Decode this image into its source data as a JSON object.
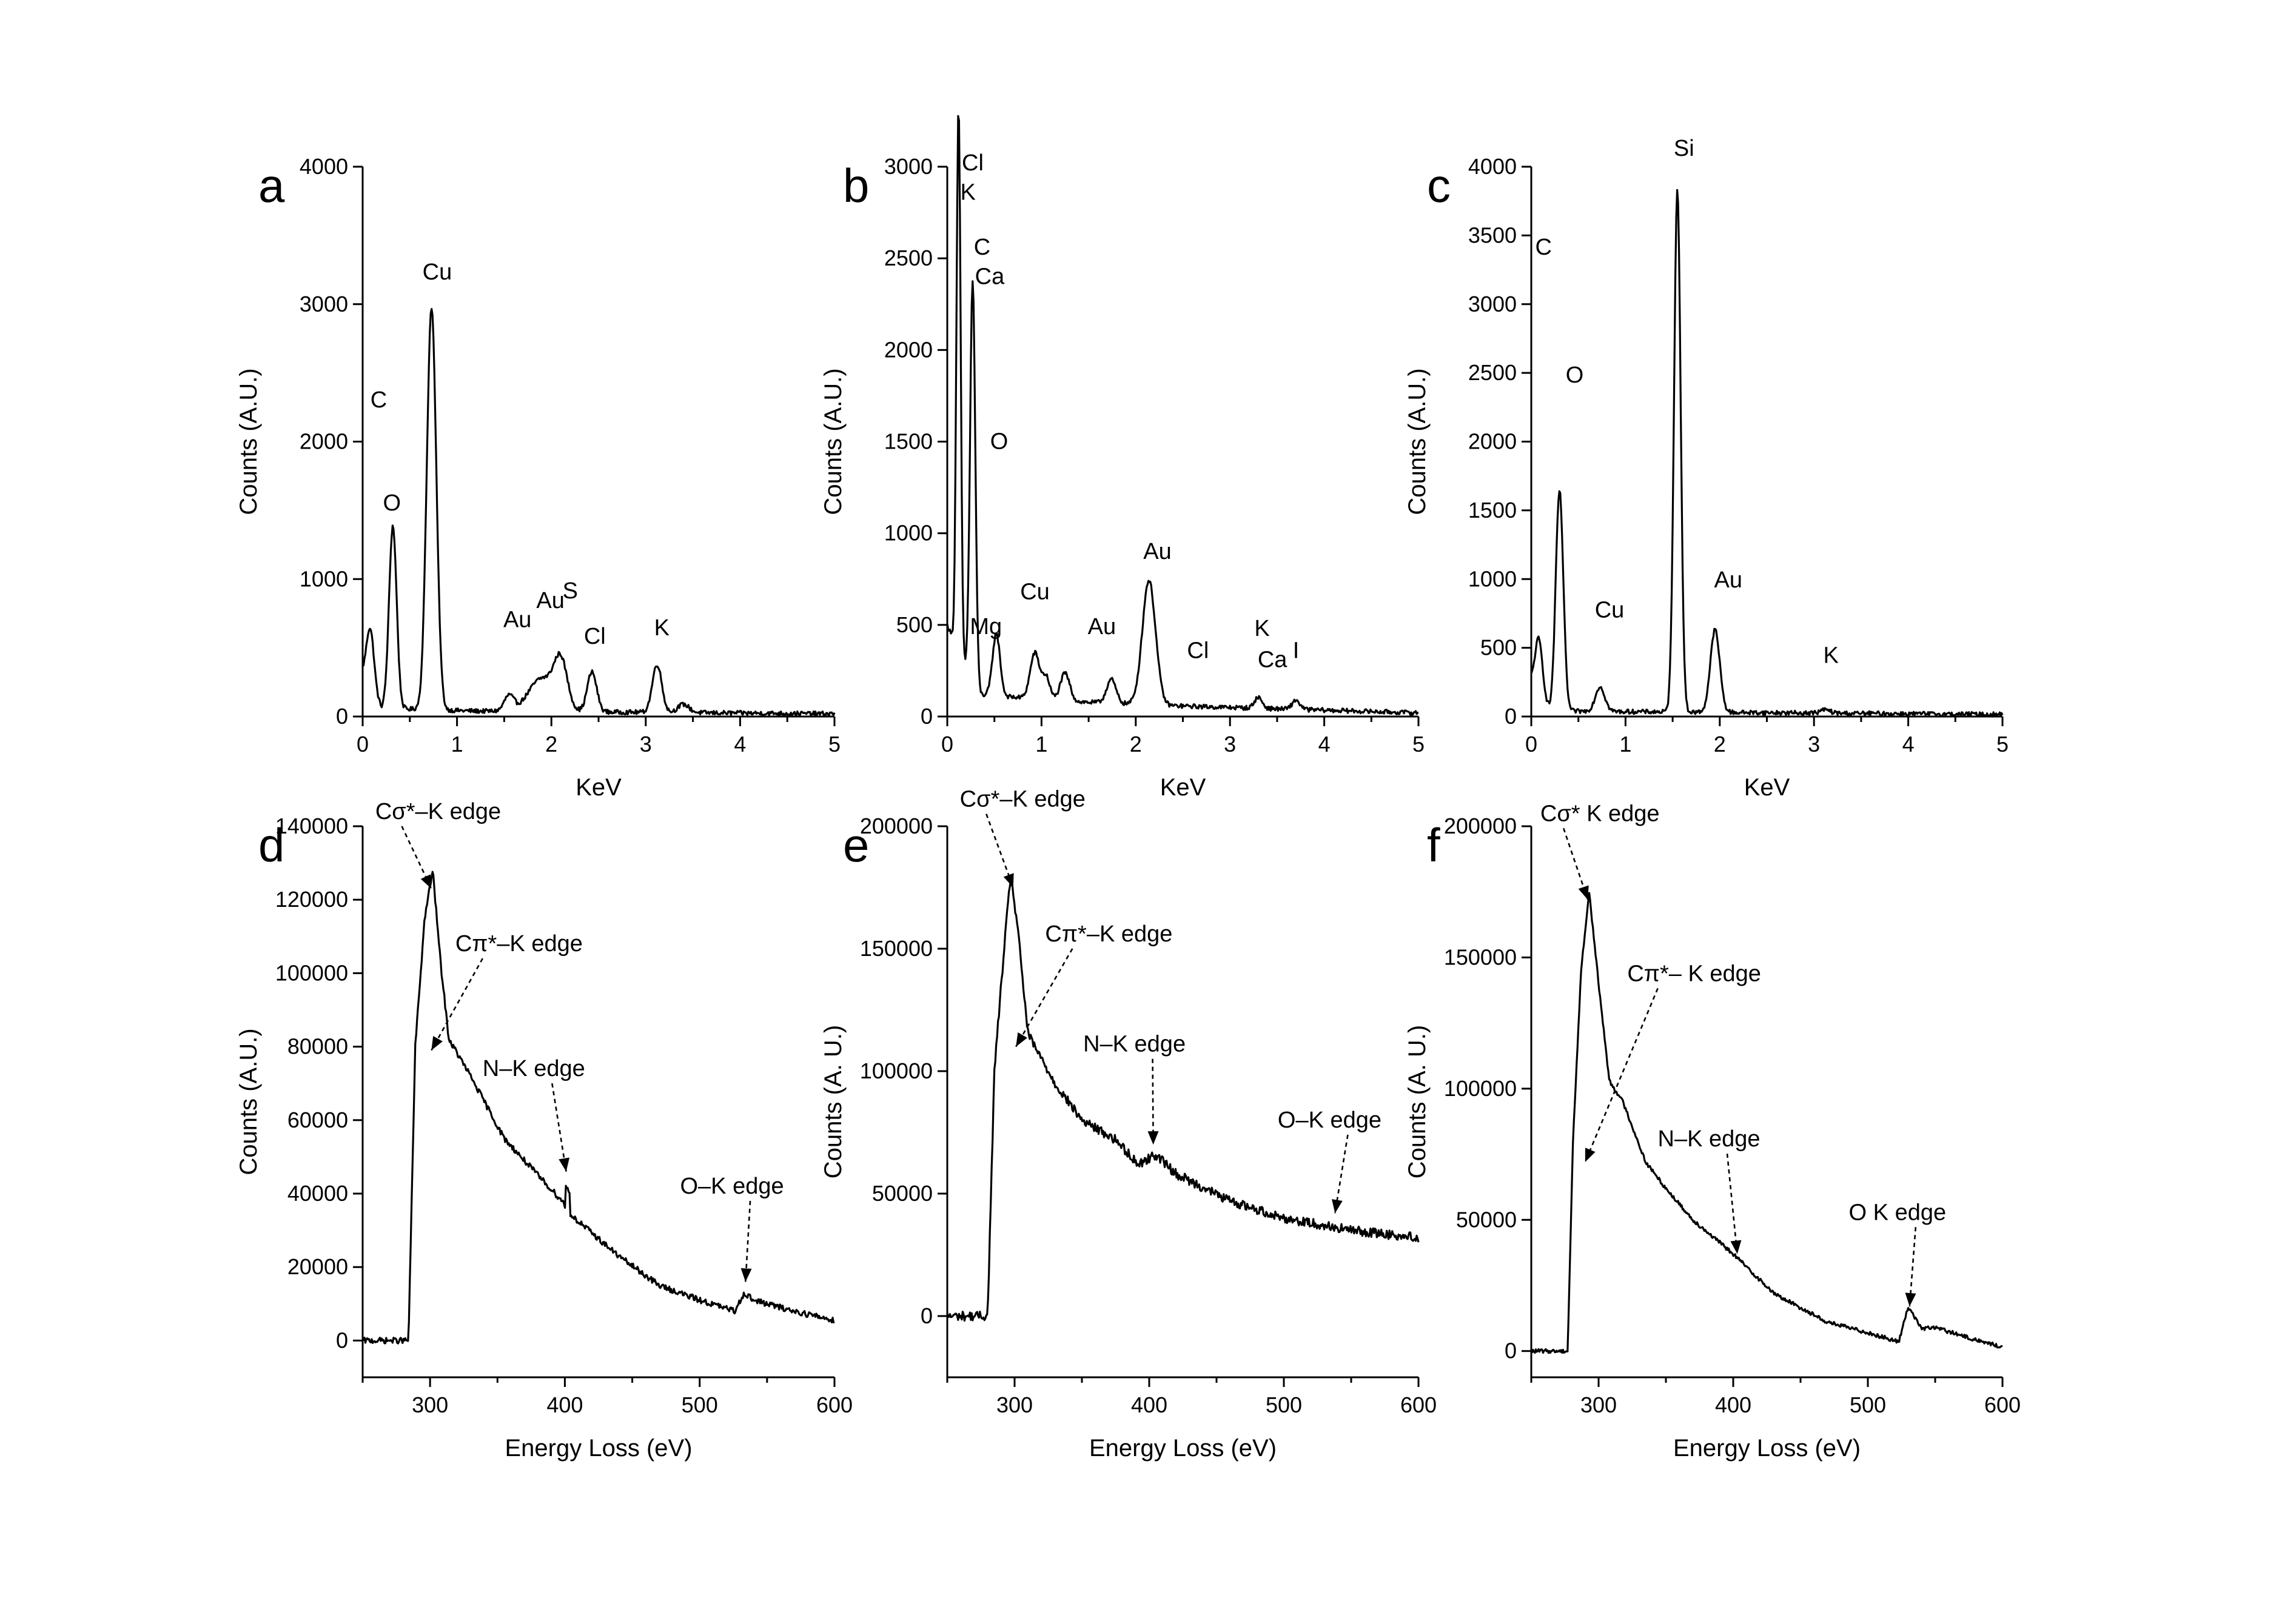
{
  "chart_data": [
    {
      "panel": "a",
      "type": "line",
      "xlabel": "KeV",
      "ylabel": "Counts (A.U.)",
      "xlim": [
        0,
        5
      ],
      "ylim": [
        0,
        4000
      ],
      "xticks": [
        0,
        1,
        2,
        3,
        4,
        5
      ],
      "yticks": [
        0,
        1000,
        2000,
        3000,
        4000
      ],
      "peaks": [
        [
          0.08,
          440,
          0.04
        ],
        [
          0.32,
          1330,
          0.04
        ],
        [
          0.73,
          2930,
          0.05
        ],
        [
          1.55,
          110,
          0.05
        ],
        [
          1.9,
          240,
          0.14
        ],
        [
          2.1,
          330,
          0.07
        ],
        [
          2.43,
          290,
          0.05
        ],
        [
          3.12,
          350,
          0.05
        ],
        [
          3.4,
          60,
          0.06
        ]
      ],
      "background": [
        [
          0,
          300
        ],
        [
          0.2,
          60
        ],
        [
          1.2,
          40
        ],
        [
          5,
          20
        ]
      ],
      "annotations": [
        {
          "text": "C",
          "x": 0.17,
          "y": 2250
        },
        {
          "text": "O",
          "x": 0.31,
          "y": 1500
        },
        {
          "text": "Cu",
          "x": 0.79,
          "y": 3180
        },
        {
          "text": "Au",
          "x": 1.64,
          "y": 650
        },
        {
          "text": "Au",
          "x": 1.99,
          "y": 790
        },
        {
          "text": "S",
          "x": 2.2,
          "y": 860
        },
        {
          "text": "Cl",
          "x": 2.46,
          "y": 530
        },
        {
          "text": "K",
          "x": 3.17,
          "y": 590
        }
      ]
    },
    {
      "panel": "b",
      "type": "line",
      "xlabel": "KeV",
      "ylabel": "Counts (A.U.)",
      "xlim": [
        0,
        5
      ],
      "ylim": [
        0,
        3000
      ],
      "xticks": [
        0,
        1,
        2,
        3,
        4,
        5
      ],
      "yticks": [
        0,
        500,
        1000,
        1500,
        2000,
        2500,
        3000
      ],
      "peaks": [
        [
          0.12,
          2980,
          0.022
        ],
        [
          0.27,
          2220,
          0.028
        ],
        [
          0.52,
          340,
          0.04
        ],
        [
          0.93,
          250,
          0.05
        ],
        [
          1.05,
          120,
          0.04
        ],
        [
          1.25,
          150,
          0.05
        ],
        [
          1.74,
          130,
          0.05
        ],
        [
          2.14,
          680,
          0.07
        ],
        [
          3.3,
          60,
          0.04
        ],
        [
          3.7,
          50,
          0.04
        ]
      ],
      "background": [
        [
          0,
          500
        ],
        [
          0.3,
          120
        ],
        [
          1.4,
          80
        ],
        [
          2.3,
          60
        ],
        [
          5,
          20
        ]
      ],
      "annotations": [
        {
          "text": "Cl",
          "x": 0.27,
          "y": 2980
        },
        {
          "text": "K",
          "x": 0.22,
          "y": 2820
        },
        {
          "text": "C",
          "x": 0.37,
          "y": 2520
        },
        {
          "text": "Ca",
          "x": 0.45,
          "y": 2360
        },
        {
          "text": "O",
          "x": 0.55,
          "y": 1460
        },
        {
          "text": "Cu",
          "x": 0.93,
          "y": 640
        },
        {
          "text": "Mg",
          "x": 0.41,
          "y": 450
        },
        {
          "text": "Au",
          "x": 1.64,
          "y": 450
        },
        {
          "text": "Au",
          "x": 2.23,
          "y": 860
        },
        {
          "text": "Cl",
          "x": 2.66,
          "y": 320
        },
        {
          "text": "K",
          "x": 3.34,
          "y": 440
        },
        {
          "text": "Ca",
          "x": 3.45,
          "y": 270
        },
        {
          "text": "I",
          "x": 3.7,
          "y": 320
        }
      ]
    },
    {
      "panel": "c",
      "type": "line",
      "xlabel": "KeV",
      "ylabel": "Counts (A.U.)",
      "xlim": [
        0,
        5
      ],
      "ylim": [
        0,
        4000
      ],
      "xticks": [
        0,
        1,
        2,
        3,
        4,
        5
      ],
      "yticks": [
        0,
        500,
        1000,
        1500,
        2000,
        2500,
        3000,
        3500,
        4000
      ],
      "peaks": [
        [
          0.08,
          400,
          0.04
        ],
        [
          0.3,
          1600,
          0.04
        ],
        [
          0.73,
          180,
          0.05
        ],
        [
          1.55,
          3800,
          0.035
        ],
        [
          1.95,
          600,
          0.05
        ],
        [
          3.12,
          25,
          0.05
        ]
      ],
      "background": [
        [
          0,
          250
        ],
        [
          0.2,
          40
        ],
        [
          5,
          15
        ]
      ],
      "annotations": [
        {
          "text": "C",
          "x": 0.13,
          "y": 3360
        },
        {
          "text": "O",
          "x": 0.46,
          "y": 2430
        },
        {
          "text": "Cu",
          "x": 0.83,
          "y": 720
        },
        {
          "text": "Si",
          "x": 1.62,
          "y": 4080
        },
        {
          "text": "Au",
          "x": 2.09,
          "y": 940
        },
        {
          "text": "K",
          "x": 3.18,
          "y": 390
        }
      ]
    },
    {
      "panel": "d",
      "type": "line",
      "xlabel": "Energy Loss (eV)",
      "ylabel": "Counts (A.U.)",
      "xlim": [
        250,
        600
      ],
      "ylim": [
        -10000,
        140000
      ],
      "xticks": [
        300,
        400,
        500,
        600
      ],
      "yticks": [
        0,
        20000,
        40000,
        60000,
        80000,
        100000,
        120000,
        140000
      ],
      "curve": [
        [
          250,
          0
        ],
        [
          284,
          0
        ],
        [
          289,
          80000
        ],
        [
          296,
          115000
        ],
        [
          302,
          128000
        ],
        [
          308,
          102000
        ],
        [
          314,
          82000
        ],
        [
          330,
          72000
        ],
        [
          355,
          55000
        ],
        [
          380,
          45000
        ],
        [
          398,
          38000
        ],
        [
          405,
          34000
        ],
        [
          440,
          23000
        ],
        [
          470,
          15000
        ],
        [
          500,
          11000
        ],
        [
          526,
          8000
        ],
        [
          533,
          13000
        ],
        [
          540,
          11000
        ],
        [
          570,
          8000
        ],
        [
          600,
          5500
        ]
      ],
      "spikes": [
        [
          402,
          5500
        ],
        [
          526,
          0
        ]
      ],
      "noise": 1600,
      "annotations": [
        {
          "text": "Cσ*–K edge",
          "x": 306,
          "y": 142000,
          "arrow_to": [
            301,
            123000
          ]
        },
        {
          "text": "Cπ*–K edge",
          "x": 366,
          "y": 106000,
          "arrow_to": [
            301,
            79000
          ]
        },
        {
          "text": "N–K edge",
          "x": 377,
          "y": 72000,
          "arrow_to": [
            401,
            46000
          ]
        },
        {
          "text": "O–K edge",
          "x": 524,
          "y": 40000,
          "arrow_to": [
            534,
            16000
          ]
        }
      ]
    },
    {
      "panel": "e",
      "type": "line",
      "xlabel": "Energy Loss (eV)",
      "ylabel": "Counts (A. U.)",
      "xlim": [
        250,
        600
      ],
      "ylim": [
        -25000,
        200000
      ],
      "xticks": [
        300,
        400,
        500,
        600
      ],
      "yticks": [
        0,
        50000,
        100000,
        150000,
        200000
      ],
      "curve": [
        [
          250,
          0
        ],
        [
          280,
          0
        ],
        [
          285,
          100000
        ],
        [
          290,
          135000
        ],
        [
          297,
          180000
        ],
        [
          302,
          160000
        ],
        [
          310,
          115000
        ],
        [
          330,
          95000
        ],
        [
          350,
          80000
        ],
        [
          375,
          72000
        ],
        [
          392,
          62000
        ],
        [
          405,
          66000
        ],
        [
          420,
          58000
        ],
        [
          460,
          47000
        ],
        [
          500,
          40000
        ],
        [
          550,
          35000
        ],
        [
          600,
          32000
        ]
      ],
      "spikes": [],
      "noise": 3800,
      "annotations": [
        {
          "text": "Cσ*–K edge",
          "x": 306,
          "y": 208000,
          "arrow_to": [
            299,
            175000
          ]
        },
        {
          "text": "Cπ*–K edge",
          "x": 370,
          "y": 153000,
          "arrow_to": [
            301,
            110000
          ]
        },
        {
          "text": "N–K edge",
          "x": 389,
          "y": 108000,
          "arrow_to": [
            403,
            70000
          ]
        },
        {
          "text": "O–K edge",
          "x": 534,
          "y": 77000,
          "arrow_to": [
            538,
            42000
          ]
        }
      ]
    },
    {
      "panel": "f",
      "type": "line",
      "xlabel": "Energy Loss (eV)",
      "ylabel": "Counts (A. U.)",
      "xlim": [
        250,
        600
      ],
      "ylim": [
        -10000,
        200000
      ],
      "xticks": [
        300,
        400,
        500,
        600
      ],
      "yticks": [
        0,
        50000,
        100000,
        150000,
        200000
      ],
      "curve": [
        [
          250,
          0
        ],
        [
          277,
          0
        ],
        [
          281,
          80000
        ],
        [
          287,
          145000
        ],
        [
          293,
          175000
        ],
        [
          300,
          140000
        ],
        [
          308,
          103000
        ],
        [
          318,
          95000
        ],
        [
          335,
          72000
        ],
        [
          350,
          62000
        ],
        [
          370,
          50000
        ],
        [
          400,
          37000
        ],
        [
          430,
          22000
        ],
        [
          470,
          11000
        ],
        [
          500,
          7000
        ],
        [
          523,
          3500
        ],
        [
          530,
          17000
        ],
        [
          540,
          8500
        ],
        [
          550,
          9000
        ],
        [
          575,
          5000
        ],
        [
          600,
          1500
        ]
      ],
      "spikes": [],
      "noise": 1500,
      "annotations": [
        {
          "text": "Cσ* K edge",
          "x": 301,
          "y": 202000,
          "arrow_to": [
            292,
            172000
          ]
        },
        {
          "text": "Cπ*– K edge",
          "x": 371,
          "y": 141000,
          "arrow_to": [
            290,
            72000
          ]
        },
        {
          "text": "N–K edge",
          "x": 382,
          "y": 78000,
          "arrow_to": [
            403,
            37000
          ]
        },
        {
          "text": "O  K edge",
          "x": 522,
          "y": 50000,
          "arrow_to": [
            531,
            17000
          ]
        }
      ]
    }
  ]
}
